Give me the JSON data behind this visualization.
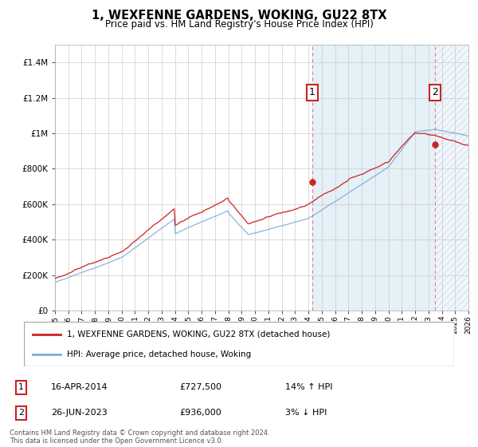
{
  "title": "1, WEXFENNE GARDENS, WOKING, GU22 8TX",
  "subtitle": "Price paid vs. HM Land Registry's House Price Index (HPI)",
  "xlim_start": 1995.0,
  "xlim_end": 2026.0,
  "ylim": [
    0,
    1500000
  ],
  "yticks": [
    0,
    200000,
    400000,
    600000,
    800000,
    1000000,
    1200000,
    1400000
  ],
  "ytick_labels": [
    "£0",
    "£200K",
    "£400K",
    "£600K",
    "£800K",
    "£1M",
    "£1.2M",
    "£1.4M"
  ],
  "xticks": [
    1995,
    1996,
    1997,
    1998,
    1999,
    2000,
    2001,
    2002,
    2003,
    2004,
    2005,
    2006,
    2007,
    2008,
    2009,
    2010,
    2011,
    2012,
    2013,
    2014,
    2015,
    2016,
    2017,
    2018,
    2019,
    2020,
    2021,
    2022,
    2023,
    2024,
    2025,
    2026
  ],
  "hpi_color": "#7aadda",
  "price_color": "#cc2222",
  "sale1_x": 2014.29,
  "sale1_y": 727500,
  "sale1_label": "1",
  "sale1_date": "16-APR-2014",
  "sale1_price": "£727,500",
  "sale1_hpi": "14% ↑ HPI",
  "sale2_x": 2023.49,
  "sale2_y": 936000,
  "sale2_label": "2",
  "sale2_date": "26-JUN-2023",
  "sale2_price": "£936,000",
  "sale2_hpi": "3% ↓ HPI",
  "legend_line1": "1, WEXFENNE GARDENS, WOKING, GU22 8TX (detached house)",
  "legend_line2": "HPI: Average price, detached house, Woking",
  "footer": "Contains HM Land Registry data © Crown copyright and database right 2024.\nThis data is licensed under the Open Government Licence v3.0.",
  "bg_shaded_start": 2014.29,
  "bg_shaded_end": 2026.0,
  "hatch_start": 2023.49,
  "hatch_end": 2026.0
}
